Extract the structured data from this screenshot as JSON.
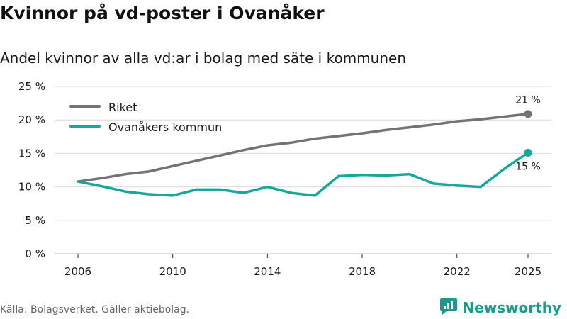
{
  "header": {
    "title": "Kvinnor på vd-poster i Ovanåker",
    "subtitle": "Andel kvinnor av alla vd:ar i bolag med säte i kommunen"
  },
  "footer": {
    "source": "Källa: Bolagsverket. Gäller aktiebolag.",
    "brand": "Newsworthy"
  },
  "colors": {
    "riket": "#737278",
    "kommun": "#15a89b",
    "grid": "#d9d9d9",
    "brand": "#1a9a8c"
  },
  "chart_data": {
    "type": "line",
    "title": "Kvinnor på vd-poster i Ovanåker",
    "subtitle": "Andel kvinnor av alla vd:ar i bolag med säte i kommunen",
    "xlabel": "",
    "ylabel": "",
    "x": [
      2006,
      2007,
      2008,
      2009,
      2010,
      2011,
      2012,
      2013,
      2014,
      2015,
      2016,
      2017,
      2018,
      2019,
      2020,
      2021,
      2022,
      2023,
      2024,
      2025
    ],
    "x_ticks": [
      "2006",
      "2010",
      "2014",
      "2018",
      "2022",
      "2025"
    ],
    "y_ticks": [
      "0 %",
      "5 %",
      "10 %",
      "15 %",
      "20 %",
      "25 %"
    ],
    "ylim": [
      0,
      25
    ],
    "grid": true,
    "legend_position": "top-left",
    "series": [
      {
        "name": "Riket",
        "values": [
          10.8,
          11.3,
          11.9,
          12.3,
          13.1,
          13.9,
          14.7,
          15.5,
          16.2,
          16.6,
          17.2,
          17.6,
          18.0,
          18.5,
          18.9,
          19.3,
          19.8,
          20.1,
          20.5,
          20.9
        ],
        "end_label": "21 %"
      },
      {
        "name": "Ovanåkers kommun",
        "values": [
          10.8,
          10.1,
          9.3,
          8.9,
          8.7,
          9.6,
          9.6,
          9.1,
          10.0,
          9.1,
          8.7,
          11.6,
          11.8,
          11.7,
          11.9,
          10.5,
          10.2,
          10.0,
          12.7,
          15.1
        ],
        "end_label": "15 %"
      }
    ]
  }
}
